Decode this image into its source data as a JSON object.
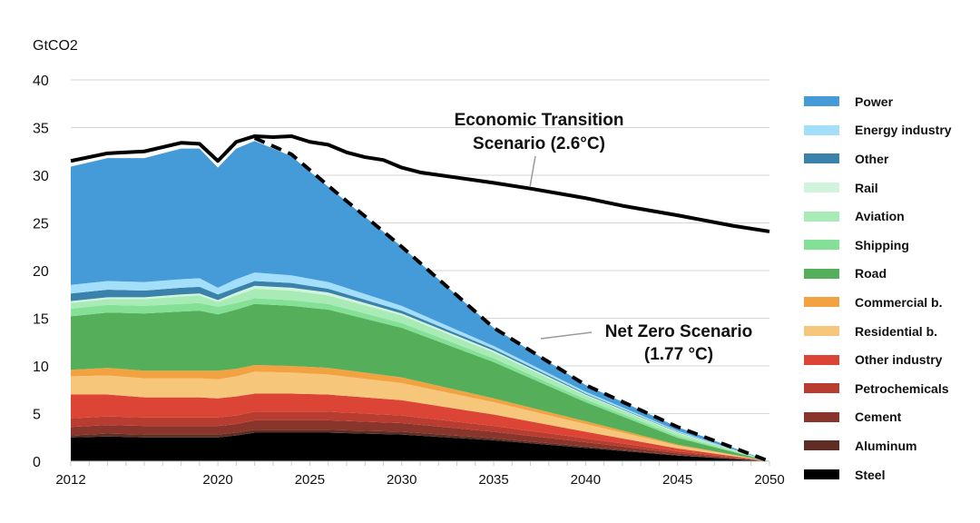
{
  "chart_data": {
    "type": "area",
    "stacked": true,
    "ylabel": "GtCO2",
    "xlabel": "",
    "ylim": [
      0,
      40
    ],
    "xlim": [
      2012,
      2050
    ],
    "yticks": [
      "0",
      "5",
      "10",
      "15",
      "20",
      "25",
      "30",
      "35",
      "40"
    ],
    "xticks": [
      "2012",
      "2020",
      "2025",
      "2030",
      "2035",
      "2040",
      "2045",
      "2050"
    ],
    "grid": true,
    "legend_position": "right",
    "x": [
      2012,
      2014,
      2016,
      2018,
      2019,
      2020,
      2021,
      2022,
      2024,
      2026,
      2030,
      2035,
      2040,
      2045,
      2050
    ],
    "series": [
      {
        "name": "Steel",
        "color": "#000000",
        "values": [
          2.5,
          2.6,
          2.5,
          2.5,
          2.5,
          2.5,
          2.7,
          3.0,
          3.0,
          3.0,
          2.8,
          2.2,
          1.4,
          0.6,
          0
        ]
      },
      {
        "name": "Aluminum",
        "color": "#5e2e24",
        "values": [
          0.2,
          0.3,
          0.3,
          0.3,
          0.3,
          0.3,
          0.3,
          0.3,
          0.3,
          0.3,
          0.3,
          0.2,
          0.15,
          0.05,
          0
        ]
      },
      {
        "name": "Cement",
        "color": "#8a352b",
        "values": [
          0.9,
          0.9,
          0.9,
          0.9,
          0.9,
          0.9,
          0.9,
          1.0,
          1.0,
          1.0,
          0.9,
          0.7,
          0.45,
          0.2,
          0
        ]
      },
      {
        "name": "Petrochemicals",
        "color": "#b83d30",
        "values": [
          0.9,
          0.9,
          0.9,
          0.9,
          0.9,
          0.9,
          0.9,
          0.9,
          0.9,
          0.9,
          0.8,
          0.6,
          0.4,
          0.2,
          0
        ]
      },
      {
        "name": "Other industry",
        "color": "#dc4535",
        "values": [
          2.5,
          2.3,
          2.1,
          2.1,
          2.1,
          2.0,
          2.0,
          1.9,
          1.9,
          1.8,
          1.6,
          1.2,
          0.7,
          0.3,
          0
        ]
      },
      {
        "name": "Residential b.",
        "color": "#f6c77a",
        "values": [
          1.9,
          2.0,
          2.0,
          2.0,
          2.0,
          2.0,
          2.1,
          2.3,
          2.2,
          2.1,
          1.8,
          1.3,
          0.8,
          0.3,
          0
        ]
      },
      {
        "name": "Commercial b.",
        "color": "#f2a240",
        "values": [
          0.7,
          0.8,
          0.8,
          0.8,
          0.8,
          0.9,
          0.8,
          0.7,
          0.7,
          0.7,
          0.6,
          0.4,
          0.3,
          0.1,
          0
        ]
      },
      {
        "name": "Road",
        "color": "#54ae5a",
        "values": [
          5.6,
          5.8,
          6.0,
          6.2,
          6.3,
          5.9,
          6.2,
          6.4,
          6.3,
          6.1,
          5.2,
          3.8,
          2.0,
          0.7,
          0
        ]
      },
      {
        "name": "Shipping",
        "color": "#84e095",
        "values": [
          0.8,
          0.8,
          0.8,
          0.8,
          0.8,
          0.8,
          0.7,
          0.6,
          0.6,
          0.6,
          0.5,
          0.4,
          0.3,
          0.2,
          0
        ]
      },
      {
        "name": "Aviation",
        "color": "#a8ebb7",
        "values": [
          0.6,
          0.6,
          0.7,
          0.8,
          0.8,
          0.5,
          0.8,
          1.0,
          1.0,
          0.9,
          0.8,
          0.6,
          0.4,
          0.3,
          0
        ]
      },
      {
        "name": "Rail",
        "color": "#d3f4dc",
        "values": [
          0.2,
          0.2,
          0.2,
          0.2,
          0.2,
          0.2,
          0.3,
          0.3,
          0.3,
          0.3,
          0.2,
          0.2,
          0.1,
          0.1,
          0
        ]
      },
      {
        "name": "Other",
        "color": "#3a82ab",
        "values": [
          0.8,
          0.8,
          0.7,
          0.7,
          0.7,
          0.6,
          0.5,
          0.5,
          0.5,
          0.4,
          0.3,
          0.2,
          0.1,
          0.05,
          0
        ]
      },
      {
        "name": "Energy industry",
        "color": "#a3dffa",
        "values": [
          0.9,
          0.9,
          0.9,
          0.9,
          0.9,
          0.7,
          0.9,
          0.9,
          0.8,
          0.7,
          0.5,
          0.3,
          0.2,
          0.1,
          0
        ]
      },
      {
        "name": "Power",
        "color": "#459bd7",
        "values": [
          12.4,
          12.9,
          13.0,
          13.7,
          13.6,
          12.6,
          13.7,
          13.8,
          12.5,
          10.0,
          6.2,
          1.9,
          0.7,
          0.4,
          0
        ]
      }
    ],
    "economic_transition": {
      "label_line1": "Economic Transition",
      "label_line2": "Scenario (2.6°C)",
      "x": [
        2012,
        2014,
        2016,
        2018,
        2019,
        2020,
        2021,
        2022,
        2023,
        2024,
        2025,
        2026,
        2027,
        2028,
        2029,
        2030,
        2031,
        2035,
        2037,
        2040,
        2042,
        2045,
        2048,
        2050
      ],
      "values": [
        31.5,
        32.3,
        32.5,
        33.4,
        33.3,
        31.5,
        33.5,
        34.1,
        34.0,
        34.1,
        33.5,
        33.2,
        32.4,
        31.9,
        31.6,
        30.8,
        30.3,
        29.2,
        28.6,
        27.6,
        26.8,
        25.8,
        24.7,
        24.1
      ]
    },
    "net_zero": {
      "label_line1": "Net Zero Scenario",
      "label_line2": "(1.77 °C)",
      "x": [
        2022,
        2024,
        2026,
        2030,
        2035,
        2040,
        2045,
        2050
      ],
      "values": [
        33.9,
        32.2,
        28.9,
        22.5,
        14.0,
        8.0,
        3.6,
        0
      ]
    }
  }
}
